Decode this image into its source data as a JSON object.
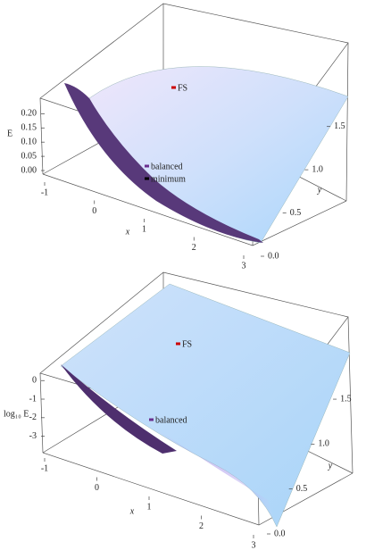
{
  "chart_data": [
    {
      "type": "surface3d",
      "xlabel": "x",
      "ylabel": "y",
      "zlabel": "E",
      "xlim": [
        -1,
        3
      ],
      "ylim": [
        0,
        1.6
      ],
      "zlim": [
        0,
        0.22
      ],
      "xticks": [
        -1,
        0,
        1,
        2,
        3
      ],
      "yticks": [
        {
          "value": 0,
          "label": "0.0"
        },
        {
          "value": 0.5,
          "label": "0.5"
        },
        {
          "value": 1,
          "label": "1.0"
        },
        {
          "value": 1.5,
          "label": "1.5"
        }
      ],
      "zticks": [
        {
          "value": 0,
          "label": "0.00"
        },
        {
          "value": 0.05,
          "label": "0.05"
        },
        {
          "value": 0.1,
          "label": "0.10"
        },
        {
          "value": 0.15,
          "label": "0.15"
        },
        {
          "value": 0.2,
          "label": "0.20"
        }
      ],
      "annotations": [
        {
          "text": "FS",
          "color": "#cc0000"
        },
        {
          "text": "balanced",
          "color": "#6a2f8f"
        },
        {
          "text": "minimum",
          "color": "#000000"
        }
      ]
    },
    {
      "type": "surface3d",
      "xlabel": "x",
      "ylabel": "y",
      "zlabel": "log₁₀ E",
      "xlim": [
        -1,
        3
      ],
      "ylim": [
        0,
        1.6
      ],
      "zlim": [
        -3.5,
        0.3
      ],
      "xticks": [
        -1,
        0,
        1,
        2,
        3
      ],
      "yticks": [
        {
          "value": 0,
          "label": "0.0"
        },
        {
          "value": 0.5,
          "label": "0.5"
        },
        {
          "value": 1,
          "label": "1.0"
        },
        {
          "value": 1.5,
          "label": "1.5"
        }
      ],
      "zticks": [
        0,
        -1,
        -2,
        -3
      ],
      "annotations": [
        {
          "text": "FS",
          "color": "#cc0000"
        },
        {
          "text": "balanced",
          "color": "#6a2f8f"
        }
      ]
    }
  ]
}
